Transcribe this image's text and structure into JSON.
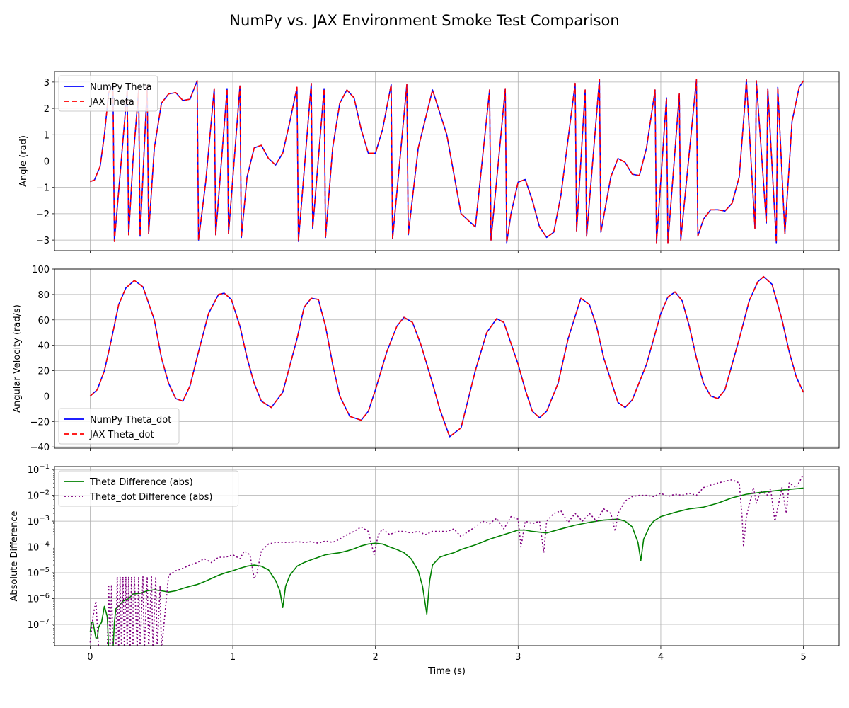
{
  "figure_title": "NumPy vs. JAX Environment Smoke Test Comparison",
  "chart_data": [
    {
      "type": "line",
      "title": "",
      "xlabel": "",
      "ylabel": "Angle (rad)",
      "xlim": [
        -0.25,
        5.25
      ],
      "ylim": [
        -3.4,
        3.4
      ],
      "yticks": [
        -3,
        -2,
        -1,
        0,
        1,
        2,
        3
      ],
      "xticks": [
        0,
        1,
        2,
        3,
        4,
        5
      ],
      "show_xtick_labels": false,
      "grid": true,
      "legend_position": "upper-left",
      "series": [
        {
          "name": "NumPy Theta",
          "color": "#0000ff",
          "style": "solid"
        },
        {
          "name": "JAX Theta",
          "color": "#ff0000",
          "style": "dashed"
        }
      ],
      "x": [
        0,
        0.03,
        0.07,
        0.1,
        0.13,
        0.16,
        0.17,
        0.21,
        0.26,
        0.27,
        0.3,
        0.34,
        0.35,
        0.4,
        0.41,
        0.45,
        0.5,
        0.55,
        0.6,
        0.65,
        0.7,
        0.75,
        0.76,
        0.81,
        0.87,
        0.88,
        0.96,
        0.97,
        1.05,
        1.06,
        1.1,
        1.15,
        1.2,
        1.25,
        1.3,
        1.35,
        1.4,
        1.45,
        1.46,
        1.55,
        1.56,
        1.64,
        1.65,
        1.7,
        1.75,
        1.8,
        1.85,
        1.9,
        1.95,
        2.0,
        2.05,
        2.11,
        2.12,
        2.22,
        2.23,
        2.3,
        2.4,
        2.5,
        2.6,
        2.7,
        2.8,
        2.81,
        2.91,
        2.92,
        2.95,
        3.0,
        3.05,
        3.1,
        3.15,
        3.2,
        3.25,
        3.3,
        3.4,
        3.41,
        3.47,
        3.48,
        3.57,
        3.58,
        3.65,
        3.7,
        3.75,
        3.8,
        3.85,
        3.9,
        3.96,
        3.97,
        4.04,
        4.05,
        4.13,
        4.14,
        4.25,
        4.26,
        4.3,
        4.35,
        4.4,
        4.45,
        4.5,
        4.55,
        4.59,
        4.6,
        4.66,
        4.67,
        4.74,
        4.75,
        4.81,
        4.82,
        4.87,
        4.92,
        4.97,
        5.0
      ],
      "y": [
        -0.78,
        -0.72,
        -0.2,
        1.0,
        2.6,
        2.9,
        -3.05,
        -0.5,
        2.7,
        -2.8,
        0.0,
        2.7,
        -2.85,
        2.85,
        -2.75,
        0.5,
        2.2,
        2.55,
        2.6,
        2.3,
        2.35,
        3.05,
        -3.0,
        -0.8,
        2.75,
        -2.8,
        2.75,
        -2.75,
        2.85,
        -2.9,
        -0.6,
        0.5,
        0.6,
        0.1,
        -0.15,
        0.3,
        1.5,
        2.8,
        -3.05,
        2.95,
        -2.55,
        2.75,
        -2.9,
        0.5,
        2.2,
        2.7,
        2.4,
        1.2,
        0.3,
        0.3,
        1.2,
        2.9,
        -2.95,
        2.9,
        -2.8,
        0.5,
        2.7,
        1.0,
        -2.0,
        -2.5,
        2.7,
        -3.0,
        2.75,
        -3.1,
        -2.0,
        -0.8,
        -0.7,
        -1.5,
        -2.5,
        -2.9,
        -2.7,
        -1.3,
        2.95,
        -2.65,
        2.7,
        -2.85,
        3.1,
        -2.7,
        -0.6,
        0.1,
        -0.05,
        -0.5,
        -0.55,
        0.5,
        2.7,
        -3.1,
        2.4,
        -3.1,
        2.55,
        -3.0,
        3.1,
        -2.85,
        -2.2,
        -1.85,
        -1.85,
        -1.9,
        -1.6,
        -0.6,
        2.2,
        3.1,
        -2.55,
        3.05,
        -2.35,
        2.75,
        -3.1,
        2.8,
        -2.75,
        1.5,
        2.8,
        3.05
      ]
    },
    {
      "type": "line",
      "title": "",
      "xlabel": "",
      "ylabel": "Angular Velocity (rad/s)",
      "xlim": [
        -0.25,
        5.25
      ],
      "ylim": [
        -41,
        100
      ],
      "yticks": [
        -40,
        -20,
        0,
        20,
        40,
        60,
        80,
        100
      ],
      "xticks": [
        0,
        1,
        2,
        3,
        4,
        5
      ],
      "show_xtick_labels": false,
      "grid": true,
      "legend_position": "lower-left",
      "series": [
        {
          "name": "NumPy Theta_dot",
          "color": "#0000ff",
          "style": "solid"
        },
        {
          "name": "JAX Theta_dot",
          "color": "#ff0000",
          "style": "dashed"
        }
      ],
      "x": [
        0,
        0.05,
        0.1,
        0.15,
        0.2,
        0.25,
        0.31,
        0.37,
        0.45,
        0.5,
        0.55,
        0.6,
        0.65,
        0.7,
        0.76,
        0.83,
        0.9,
        0.94,
        0.99,
        1.05,
        1.1,
        1.15,
        1.2,
        1.27,
        1.35,
        1.45,
        1.5,
        1.55,
        1.6,
        1.65,
        1.7,
        1.75,
        1.82,
        1.9,
        1.95,
        2.0,
        2.08,
        2.15,
        2.2,
        2.26,
        2.32,
        2.4,
        2.45,
        2.52,
        2.6,
        2.7,
        2.78,
        2.85,
        2.9,
        3.0,
        3.05,
        3.1,
        3.15,
        3.2,
        3.28,
        3.35,
        3.44,
        3.5,
        3.55,
        3.6,
        3.7,
        3.75,
        3.8,
        3.9,
        4.0,
        4.05,
        4.1,
        4.15,
        4.2,
        4.25,
        4.3,
        4.35,
        4.4,
        4.45,
        4.55,
        4.62,
        4.68,
        4.72,
        4.78,
        4.85,
        4.9,
        4.95,
        5.0
      ],
      "y": [
        0,
        5,
        20,
        45,
        72,
        85,
        91,
        86,
        60,
        30,
        10,
        -2,
        -4,
        8,
        35,
        65,
        80,
        81,
        76,
        55,
        30,
        10,
        -4,
        -9,
        3,
        45,
        70,
        77,
        76,
        55,
        25,
        0,
        -16,
        -19,
        -12,
        5,
        35,
        55,
        62,
        58,
        40,
        10,
        -10,
        -32,
        -25,
        20,
        50,
        61,
        58,
        25,
        5,
        -12,
        -17,
        -12,
        10,
        45,
        77,
        72,
        55,
        30,
        -5,
        -9,
        -3,
        25,
        65,
        78,
        82,
        75,
        55,
        30,
        10,
        0,
        -2,
        5,
        45,
        75,
        90,
        94,
        88,
        60,
        35,
        15,
        3
      ]
    },
    {
      "type": "line",
      "title": "",
      "xlabel": "Time (s)",
      "ylabel": "Absolute Difference",
      "xlim": [
        -0.25,
        5.25
      ],
      "ylim": [
        1.5e-08,
        0.13
      ],
      "yscale": "log",
      "ytick_exponents": [
        -7,
        -6,
        -5,
        -4,
        -3,
        -2,
        -1
      ],
      "xticks": [
        0,
        1,
        2,
        3,
        4,
        5
      ],
      "show_xtick_labels": true,
      "grid": true,
      "legend_position": "upper-left",
      "series": [
        {
          "name": "Theta Difference (abs)",
          "color": "#008000",
          "style": "solid",
          "x": [
            0,
            0.01,
            0.02,
            0.04,
            0.05,
            0.06,
            0.08,
            0.1,
            0.12,
            0.13,
            0.14,
            0.15,
            0.16,
            0.17,
            0.18,
            0.2,
            0.23,
            0.27,
            0.3,
            0.35,
            0.4,
            0.45,
            0.5,
            0.55,
            0.6,
            0.65,
            0.7,
            0.75,
            0.8,
            0.85,
            0.9,
            0.95,
            1.0,
            1.05,
            1.1,
            1.15,
            1.2,
            1.25,
            1.3,
            1.33,
            1.35,
            1.37,
            1.4,
            1.45,
            1.5,
            1.55,
            1.6,
            1.65,
            1.7,
            1.75,
            1.8,
            1.85,
            1.9,
            1.95,
            2.0,
            2.05,
            2.1,
            2.15,
            2.2,
            2.25,
            2.3,
            2.33,
            2.36,
            2.38,
            2.4,
            2.45,
            2.5,
            2.55,
            2.6,
            2.7,
            2.8,
            2.9,
            3.0,
            3.05,
            3.1,
            3.2,
            3.3,
            3.4,
            3.5,
            3.6,
            3.7,
            3.75,
            3.8,
            3.84,
            3.86,
            3.88,
            3.92,
            3.95,
            4.0,
            4.1,
            4.2,
            4.3,
            4.4,
            4.5,
            4.6,
            4.7,
            4.8,
            4.9,
            5.0
          ],
          "y": [
            5e-08,
            1.2e-07,
            1.2e-07,
            3e-08,
            3e-08,
            8e-08,
            1.2e-07,
            5e-07,
            2e-07,
            1e-08,
            1e-08,
            1e-08,
            1e-08,
            1.2e-07,
            4e-07,
            5e-07,
            8e-07,
            1e-06,
            1.5e-06,
            1.6e-06,
            2e-06,
            2.2e-06,
            2e-06,
            1.8e-06,
            2e-06,
            2.5e-06,
            3e-06,
            3.5e-06,
            4.5e-06,
            6e-06,
            8e-06,
            1e-05,
            1.2e-05,
            1.5e-05,
            1.8e-05,
            2e-05,
            1.8e-05,
            1.3e-05,
            5e-06,
            2e-06,
            4.5e-07,
            3e-06,
            8e-06,
            1.8e-05,
            2.5e-05,
            3.2e-05,
            4e-05,
            5e-05,
            5.5e-05,
            6e-05,
            7e-05,
            8.5e-05,
            0.00011,
            0.00013,
            0.00014,
            0.00013,
            0.0001,
            8e-05,
            6e-05,
            3.5e-05,
            1.2e-05,
            3e-06,
            2.5e-07,
            5e-06,
            2e-05,
            4e-05,
            5e-05,
            6e-05,
            8e-05,
            0.00012,
            0.0002,
            0.0003,
            0.00045,
            0.00045,
            0.0004,
            0.00035,
            0.0005,
            0.0007,
            0.0009,
            0.0011,
            0.0012,
            0.001,
            0.0006,
            0.00015,
            3e-05,
            0.0002,
            0.0006,
            0.001,
            0.0015,
            0.0022,
            0.003,
            0.0035,
            0.005,
            0.008,
            0.011,
            0.013,
            0.015,
            0.017,
            0.019
          ]
        },
        {
          "name": "Theta_dot Difference (abs)",
          "color": "#800080",
          "style": "dotted",
          "x": [
            0,
            0.02,
            0.04,
            0.06,
            0.08,
            0.1,
            0.12,
            0.13,
            0.14,
            0.15,
            0.16,
            0.17,
            0.18,
            0.19,
            0.2,
            0.21,
            0.22,
            0.23,
            0.24,
            0.25,
            0.26,
            0.27,
            0.28,
            0.29,
            0.3,
            0.31,
            0.33,
            0.34,
            0.35,
            0.37,
            0.38,
            0.4,
            0.41,
            0.43,
            0.44,
            0.46,
            0.47,
            0.49,
            0.5,
            0.55,
            0.6,
            0.65,
            0.7,
            0.75,
            0.8,
            0.85,
            0.9,
            0.95,
            1.0,
            1.05,
            1.08,
            1.12,
            1.15,
            1.17,
            1.2,
            1.25,
            1.3,
            1.35,
            1.4,
            1.45,
            1.5,
            1.55,
            1.6,
            1.65,
            1.7,
            1.75,
            1.8,
            1.85,
            1.9,
            1.95,
            1.99,
            2.02,
            2.05,
            2.1,
            2.15,
            2.2,
            2.25,
            2.3,
            2.35,
            2.4,
            2.45,
            2.5,
            2.55,
            2.6,
            2.65,
            2.7,
            2.75,
            2.8,
            2.85,
            2.9,
            2.95,
            3.0,
            3.02,
            3.05,
            3.1,
            3.15,
            3.18,
            3.2,
            3.25,
            3.3,
            3.35,
            3.4,
            3.45,
            3.5,
            3.55,
            3.6,
            3.65,
            3.68,
            3.7,
            3.75,
            3.8,
            3.85,
            3.9,
            3.95,
            4.0,
            4.05,
            4.1,
            4.15,
            4.2,
            4.25,
            4.3,
            4.35,
            4.4,
            4.45,
            4.5,
            4.55,
            4.57,
            4.58,
            4.6,
            4.65,
            4.67,
            4.7,
            4.75,
            4.77,
            4.8,
            4.85,
            4.88,
            4.9,
            4.95,
            5.0
          ],
          "y": [
            2e-08,
            2e-07,
            8e-07,
            1e-08,
            1e-08,
            1e-08,
            1e-08,
            3.5e-06,
            1e-08,
            3.5e-06,
            1e-08,
            1e-08,
            1e-08,
            7e-06,
            1e-08,
            7e-06,
            1e-08,
            7e-06,
            1e-08,
            7e-06,
            1e-08,
            7e-06,
            1e-08,
            7e-06,
            1e-08,
            7e-06,
            1e-08,
            7e-06,
            1e-08,
            7e-06,
            1e-08,
            7e-06,
            1e-08,
            7e-06,
            1e-08,
            7e-06,
            1e-08,
            3e-06,
            1e-08,
            8e-06,
            1.2e-05,
            1.5e-05,
            2e-05,
            2.5e-05,
            3.5e-05,
            2.5e-05,
            4e-05,
            4e-05,
            5e-05,
            3.5e-05,
            7e-05,
            5e-05,
            6e-06,
            1e-05,
            7e-05,
            0.00013,
            0.00015,
            0.00015,
            0.00015,
            0.00016,
            0.00015,
            0.00016,
            0.00014,
            0.00017,
            0.00015,
            0.0002,
            0.0003,
            0.0004,
            0.0006,
            0.0004,
            5e-05,
            0.0003,
            0.0005,
            0.0003,
            0.0004,
            0.0004,
            0.00035,
            0.0004,
            0.0003,
            0.0004,
            0.0004,
            0.0004,
            0.0005,
            0.00025,
            0.0004,
            0.0006,
            0.001,
            0.0008,
            0.0013,
            0.0005,
            0.0015,
            0.0012,
            0.0001,
            0.001,
            0.0008,
            0.001,
            6e-05,
            0.001,
            0.002,
            0.0025,
            0.0009,
            0.002,
            0.001,
            0.002,
            0.001,
            0.003,
            0.002,
            0.0004,
            0.002,
            0.006,
            0.009,
            0.01,
            0.01,
            0.009,
            0.012,
            0.009,
            0.011,
            0.01,
            0.012,
            0.01,
            0.02,
            0.025,
            0.03,
            0.035,
            0.04,
            0.03,
            0.0015,
            0.0001,
            0.0015,
            0.02,
            0.005,
            0.015,
            0.01,
            0.018,
            0.001,
            0.02,
            0.002,
            0.03,
            0.02,
            0.065
          ]
        }
      ]
    }
  ]
}
